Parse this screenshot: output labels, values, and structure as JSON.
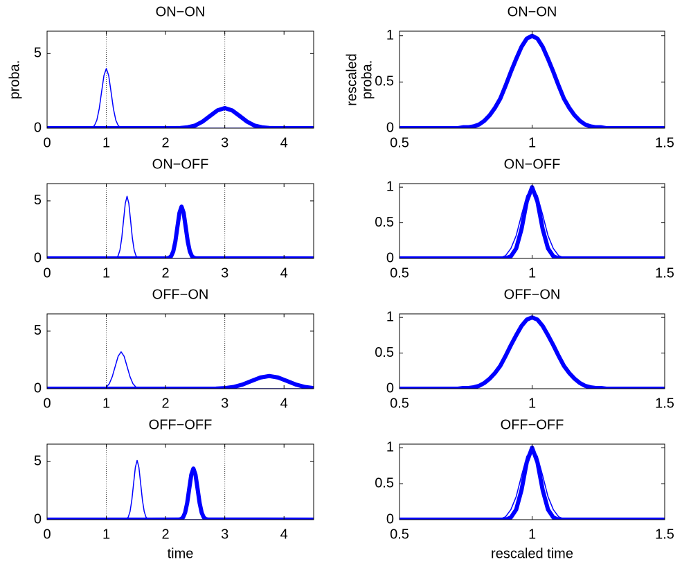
{
  "chart_data": [
    {
      "type": "line",
      "title": "ON−ON",
      "ylabel": [
        "proba."
      ],
      "x": [
        0,
        0.72,
        0.76,
        0.8,
        0.84,
        0.88,
        0.92,
        0.96,
        1,
        1.04,
        1.08,
        1.12,
        1.16,
        1.2,
        1.24,
        1.28,
        2.125,
        2.25,
        2.375,
        2.5,
        2.625,
        2.75,
        2.875,
        3,
        3.125,
        3.25,
        3.375,
        3.5,
        3.625,
        3.75,
        3.875,
        4.5
      ],
      "series": [
        {
          "color": "#0000ff",
          "width": 1.5,
          "values": [
            0,
            0.01,
            0.04,
            0.18,
            0.54,
            1.3,
            2.43,
            3.53,
            4,
            3.53,
            2.43,
            1.3,
            0.54,
            0.18,
            0.04,
            0.01,
            0,
            0,
            0,
            0,
            0,
            0,
            0,
            0,
            0,
            0,
            0,
            0,
            0,
            0,
            0,
            0
          ]
        },
        {
          "color": "#0000ff",
          "width": 6,
          "values": [
            0,
            0,
            0,
            0,
            0,
            0,
            0,
            0,
            0,
            0,
            0,
            0,
            0,
            0,
            0,
            0,
            0,
            0.01,
            0.06,
            0.18,
            0.44,
            0.82,
            1.19,
            1.35,
            1.19,
            0.82,
            0.44,
            0.18,
            0.06,
            0.01,
            0,
            0
          ]
        }
      ],
      "vlines": [
        1,
        3
      ],
      "xlim": [
        0,
        4.5
      ],
      "xticks": [
        0,
        1,
        2,
        3,
        4
      ],
      "ylim": [
        0,
        6.5
      ],
      "yticks": [
        0,
        5
      ]
    },
    {
      "type": "line",
      "title": "ON−ON",
      "ylabel": [
        "rescaled",
        "proba."
      ],
      "x": [
        0.5,
        0.7,
        0.72,
        0.74,
        0.76,
        0.78,
        0.8,
        0.82,
        0.84,
        0.86,
        0.88,
        0.9,
        0.92,
        0.94,
        0.96,
        0.98,
        1,
        1.02,
        1.04,
        1.06,
        1.08,
        1.1,
        1.12,
        1.14,
        1.16,
        1.18,
        1.2,
        1.22,
        1.24,
        1.26,
        1.28,
        1.3,
        1.5
      ],
      "series": [
        {
          "color": "#0000ff",
          "width": 1.5,
          "values": [
            0,
            0,
            0,
            0.01,
            0.01,
            0.02,
            0.04,
            0.08,
            0.14,
            0.22,
            0.32,
            0.46,
            0.61,
            0.75,
            0.88,
            0.97,
            1,
            0.97,
            0.88,
            0.75,
            0.61,
            0.46,
            0.32,
            0.22,
            0.14,
            0.08,
            0.04,
            0.02,
            0.01,
            0.01,
            0,
            0,
            0
          ]
        },
        {
          "color": "#0000ff",
          "width": 6,
          "values": [
            0,
            0,
            0,
            0.01,
            0.01,
            0.02,
            0.04,
            0.08,
            0.14,
            0.22,
            0.32,
            0.46,
            0.61,
            0.75,
            0.88,
            0.97,
            1,
            0.97,
            0.88,
            0.75,
            0.61,
            0.46,
            0.32,
            0.22,
            0.14,
            0.08,
            0.04,
            0.02,
            0.01,
            0.01,
            0,
            0,
            0
          ]
        }
      ],
      "xlim": [
        0.5,
        1.5
      ],
      "xticks": [
        0.5,
        1,
        1.5
      ],
      "ylim": [
        0,
        1.05
      ],
      "yticks": [
        0,
        0.5,
        1
      ]
    },
    {
      "type": "line",
      "title": "ON−OFF",
      "x": [
        0,
        1.14,
        1.17,
        1.2,
        1.23,
        1.26,
        1.29,
        1.32,
        1.35,
        1.38,
        1.41,
        1.44,
        1.47,
        1.5,
        1.53,
        1.56,
        2.025,
        2.06,
        2.095,
        2.13,
        2.165,
        2.2,
        2.235,
        2.27,
        2.305,
        2.34,
        2.375,
        2.41,
        2.445,
        2.48,
        2.515,
        4.5
      ],
      "series": [
        {
          "color": "#0000ff",
          "width": 1.5,
          "values": [
            0,
            0.01,
            0.06,
            0.24,
            0.73,
            1.75,
            3.28,
            4.77,
            5.4,
            4.77,
            3.28,
            1.75,
            0.73,
            0.24,
            0.06,
            0.01,
            0,
            0,
            0,
            0,
            0,
            0,
            0,
            0,
            0,
            0,
            0,
            0,
            0,
            0,
            0,
            0
          ]
        },
        {
          "color": "#0000ff",
          "width": 6,
          "values": [
            0,
            0,
            0,
            0,
            0,
            0,
            0,
            0,
            0,
            0,
            0,
            0,
            0,
            0,
            0,
            0,
            0.01,
            0.05,
            0.2,
            0.61,
            1.46,
            2.73,
            3.97,
            4.5,
            3.97,
            2.73,
            1.46,
            0.61,
            0.2,
            0.05,
            0.01,
            0
          ]
        }
      ],
      "vlines": [
        1,
        3
      ],
      "xlim": [
        0,
        4.5
      ],
      "xticks": [
        0,
        1,
        2,
        3,
        4
      ],
      "ylim": [
        0,
        6.5
      ],
      "yticks": [
        0,
        5
      ]
    },
    {
      "type": "line",
      "title": "ON−OFF",
      "x": [
        0.5,
        0.7,
        0.72,
        0.74,
        0.76,
        0.78,
        0.8,
        0.82,
        0.84,
        0.86,
        0.88,
        0.9,
        0.92,
        0.94,
        0.96,
        0.98,
        1,
        1.02,
        1.04,
        1.06,
        1.08,
        1.1,
        1.12,
        1.14,
        1.16,
        1.18,
        1.2,
        1.22,
        1.24,
        1.26,
        1.28,
        1.3,
        1.5
      ],
      "series": [
        {
          "color": "#0000ff",
          "width": 1.5,
          "values": [
            0,
            0,
            0,
            0,
            0,
            0,
            0,
            0,
            0,
            0,
            0.01,
            0.04,
            0.14,
            0.32,
            0.61,
            0.88,
            1,
            0.88,
            0.61,
            0.32,
            0.14,
            0.04,
            0.01,
            0,
            0,
            0,
            0,
            0,
            0,
            0,
            0,
            0,
            0
          ]
        },
        {
          "color": "#0000ff",
          "width": 6,
          "values": [
            0,
            0,
            0,
            0,
            0,
            0,
            0,
            0,
            0,
            0,
            0,
            0,
            0.03,
            0.14,
            0.41,
            0.8,
            1,
            0.8,
            0.41,
            0.14,
            0.03,
            0,
            0,
            0,
            0,
            0,
            0,
            0,
            0,
            0,
            0,
            0,
            0
          ]
        }
      ],
      "xlim": [
        0.5,
        1.5
      ],
      "xticks": [
        0.5,
        1,
        1.5
      ],
      "ylim": [
        0,
        1.05
      ],
      "yticks": [
        0,
        0.5,
        1
      ]
    },
    {
      "type": "line",
      "title": "OFF−ON",
      "x": [
        0,
        0.9,
        0.95,
        1,
        1.05,
        1.1,
        1.15,
        1.2,
        1.25,
        1.3,
        1.35,
        1.4,
        1.45,
        1.5,
        1.55,
        1.6,
        2.7,
        2.85,
        3,
        3.15,
        3.3,
        3.45,
        3.6,
        3.75,
        3.9,
        4.05,
        4.2,
        4.35,
        4.5
      ],
      "series": [
        {
          "color": "#0000ff",
          "width": 1.5,
          "values": [
            0,
            0.01,
            0.04,
            0.14,
            0.43,
            1.04,
            1.94,
            2.82,
            3.2,
            2.82,
            1.94,
            1.04,
            0.43,
            0.14,
            0.04,
            0.01,
            0,
            0,
            0,
            0,
            0,
            0,
            0,
            0,
            0,
            0,
            0,
            0,
            0
          ]
        },
        {
          "color": "#0000ff",
          "width": 6,
          "values": [
            0,
            0,
            0,
            0,
            0,
            0,
            0,
            0,
            0,
            0,
            0,
            0,
            0,
            0,
            0,
            0,
            0,
            0.01,
            0.05,
            0.15,
            0.36,
            0.67,
            0.97,
            1.1,
            0.97,
            0.67,
            0.36,
            0.15,
            0.05
          ]
        }
      ],
      "vlines": [
        1,
        3
      ],
      "xlim": [
        0,
        4.5
      ],
      "xticks": [
        0,
        1,
        2,
        3,
        4
      ],
      "ylim": [
        0,
        6.5
      ],
      "yticks": [
        0,
        5
      ]
    },
    {
      "type": "line",
      "title": "OFF−ON",
      "x": [
        0.5,
        0.7,
        0.72,
        0.74,
        0.76,
        0.78,
        0.8,
        0.82,
        0.84,
        0.86,
        0.88,
        0.9,
        0.92,
        0.94,
        0.96,
        0.98,
        1,
        1.02,
        1.04,
        1.06,
        1.08,
        1.1,
        1.12,
        1.14,
        1.16,
        1.18,
        1.2,
        1.22,
        1.24,
        1.26,
        1.28,
        1.3,
        1.5
      ],
      "series": [
        {
          "color": "#0000ff",
          "width": 1.5,
          "values": [
            0,
            0,
            0,
            0.01,
            0.01,
            0.02,
            0.04,
            0.08,
            0.14,
            0.22,
            0.32,
            0.46,
            0.61,
            0.75,
            0.88,
            0.97,
            1,
            0.97,
            0.88,
            0.75,
            0.61,
            0.46,
            0.32,
            0.22,
            0.14,
            0.08,
            0.04,
            0.02,
            0.01,
            0.01,
            0,
            0,
            0
          ]
        },
        {
          "color": "#0000ff",
          "width": 6,
          "values": [
            0,
            0,
            0,
            0.01,
            0.01,
            0.02,
            0.04,
            0.08,
            0.14,
            0.22,
            0.32,
            0.46,
            0.61,
            0.75,
            0.88,
            0.97,
            1,
            0.97,
            0.88,
            0.75,
            0.61,
            0.46,
            0.32,
            0.22,
            0.14,
            0.08,
            0.04,
            0.02,
            0.01,
            0.01,
            0,
            0,
            0
          ]
        }
      ],
      "xlim": [
        0.5,
        1.5
      ],
      "xticks": [
        0.5,
        1,
        1.5
      ],
      "ylim": [
        0,
        1.05
      ],
      "yticks": [
        0,
        0.5,
        1
      ]
    },
    {
      "type": "line",
      "title": "OFF−OFF",
      "xlabel": "time",
      "x": [
        0,
        1.31,
        1.34,
        1.37,
        1.4,
        1.43,
        1.46,
        1.49,
        1.52,
        1.55,
        1.58,
        1.61,
        1.64,
        1.67,
        1.7,
        1.73,
        2.225,
        2.26,
        2.295,
        2.33,
        2.365,
        2.4,
        2.435,
        2.47,
        2.505,
        2.54,
        2.575,
        2.61,
        2.645,
        2.68,
        2.715,
        4.5
      ],
      "series": [
        {
          "color": "#0000ff",
          "width": 1.5,
          "values": [
            0,
            0.01,
            0.06,
            0.22,
            0.69,
            1.66,
            3.09,
            4.5,
            5.1,
            4.5,
            3.09,
            1.66,
            0.69,
            0.22,
            0.06,
            0.01,
            0,
            0,
            0,
            0,
            0,
            0,
            0,
            0,
            0,
            0,
            0,
            0,
            0,
            0,
            0,
            0
          ]
        },
        {
          "color": "#0000ff",
          "width": 6,
          "values": [
            0,
            0,
            0,
            0,
            0,
            0,
            0,
            0,
            0,
            0,
            0,
            0,
            0,
            0,
            0,
            0,
            0.01,
            0.05,
            0.19,
            0.6,
            1.43,
            2.67,
            3.88,
            4.4,
            3.88,
            2.67,
            1.43,
            0.6,
            0.19,
            0.05,
            0.01,
            0
          ]
        }
      ],
      "vlines": [
        1,
        3
      ],
      "xlim": [
        0,
        4.5
      ],
      "xticks": [
        0,
        1,
        2,
        3,
        4
      ],
      "ylim": [
        0,
        6.5
      ],
      "yticks": [
        0,
        5
      ]
    },
    {
      "type": "line",
      "title": "OFF−OFF",
      "xlabel": "rescaled time",
      "x": [
        0.5,
        0.7,
        0.72,
        0.74,
        0.76,
        0.78,
        0.8,
        0.82,
        0.84,
        0.86,
        0.88,
        0.9,
        0.92,
        0.94,
        0.96,
        0.98,
        1,
        1.02,
        1.04,
        1.06,
        1.08,
        1.1,
        1.12,
        1.14,
        1.16,
        1.18,
        1.2,
        1.22,
        1.24,
        1.26,
        1.28,
        1.3,
        1.5
      ],
      "series": [
        {
          "color": "#0000ff",
          "width": 1.5,
          "values": [
            0,
            0,
            0,
            0,
            0,
            0,
            0,
            0,
            0,
            0,
            0.01,
            0.04,
            0.14,
            0.32,
            0.61,
            0.88,
            1,
            0.88,
            0.61,
            0.32,
            0.14,
            0.04,
            0.01,
            0,
            0,
            0,
            0,
            0,
            0,
            0,
            0,
            0,
            0
          ]
        },
        {
          "color": "#0000ff",
          "width": 6,
          "values": [
            0,
            0,
            0,
            0,
            0,
            0,
            0,
            0,
            0,
            0,
            0,
            0,
            0.03,
            0.14,
            0.41,
            0.8,
            1,
            0.8,
            0.41,
            0.14,
            0.03,
            0,
            0,
            0,
            0,
            0,
            0,
            0,
            0,
            0,
            0,
            0,
            0
          ]
        }
      ],
      "xlim": [
        0.5,
        1.5
      ],
      "xticks": [
        0.5,
        1,
        1.5
      ],
      "ylim": [
        0,
        1.05
      ],
      "yticks": [
        0,
        0.5,
        1
      ]
    }
  ]
}
